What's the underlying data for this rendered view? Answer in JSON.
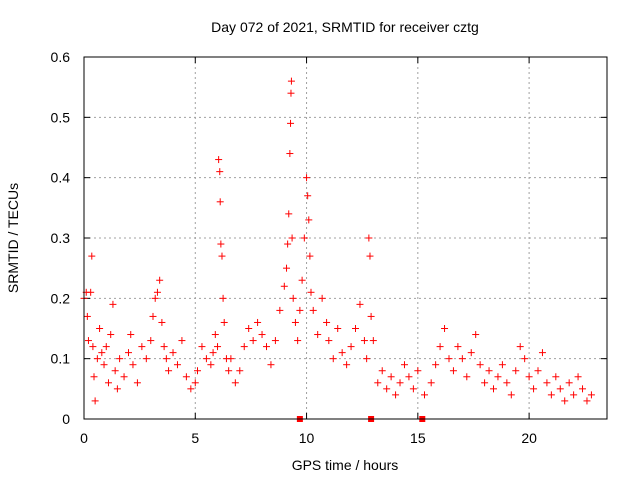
{
  "chart_data": {
    "type": "scatter",
    "title": "Day 072 of 2021, SRMTID for receiver cztg",
    "xlabel": "GPS time / hours",
    "ylabel": "SRMTID / TECUs",
    "xlim": [
      0,
      23.5
    ],
    "ylim": [
      0,
      0.6
    ],
    "x_ticks": [
      0,
      5,
      10,
      15,
      20
    ],
    "y_ticks": [
      0,
      0.1,
      0.2,
      0.3,
      0.4,
      0.5,
      0.6
    ],
    "grid": true,
    "marker": "+",
    "color": "#ff0000",
    "series": [
      {
        "name": "SRMTID",
        "points": [
          [
            0.0,
            0.2
          ],
          [
            0.1,
            0.21
          ],
          [
            0.15,
            0.17
          ],
          [
            0.2,
            0.13
          ],
          [
            0.3,
            0.21
          ],
          [
            0.35,
            0.27
          ],
          [
            0.4,
            0.12
          ],
          [
            0.45,
            0.07
          ],
          [
            0.5,
            0.03
          ],
          [
            0.6,
            0.1
          ],
          [
            0.7,
            0.15
          ],
          [
            0.8,
            0.11
          ],
          [
            0.9,
            0.09
          ],
          [
            1.0,
            0.12
          ],
          [
            1.1,
            0.06
          ],
          [
            1.2,
            0.14
          ],
          [
            1.3,
            0.19
          ],
          [
            1.4,
            0.08
          ],
          [
            1.5,
            0.05
          ],
          [
            1.6,
            0.1
          ],
          [
            1.8,
            0.07
          ],
          [
            2.0,
            0.11
          ],
          [
            2.1,
            0.14
          ],
          [
            2.2,
            0.09
          ],
          [
            2.4,
            0.06
          ],
          [
            2.6,
            0.12
          ],
          [
            2.8,
            0.1
          ],
          [
            3.0,
            0.13
          ],
          [
            3.1,
            0.17
          ],
          [
            3.2,
            0.2
          ],
          [
            3.3,
            0.21
          ],
          [
            3.4,
            0.23
          ],
          [
            3.5,
            0.16
          ],
          [
            3.6,
            0.12
          ],
          [
            3.7,
            0.1
          ],
          [
            3.8,
            0.08
          ],
          [
            4.0,
            0.11
          ],
          [
            4.2,
            0.09
          ],
          [
            4.4,
            0.13
          ],
          [
            4.6,
            0.07
          ],
          [
            4.8,
            0.05
          ],
          [
            5.0,
            0.06
          ],
          [
            5.1,
            0.08
          ],
          [
            5.3,
            0.12
          ],
          [
            5.5,
            0.1
          ],
          [
            5.7,
            0.09
          ],
          [
            5.8,
            0.11
          ],
          [
            5.9,
            0.14
          ],
          [
            6.0,
            0.12
          ],
          [
            6.05,
            0.43
          ],
          [
            6.1,
            0.41
          ],
          [
            6.12,
            0.36
          ],
          [
            6.15,
            0.29
          ],
          [
            6.2,
            0.27
          ],
          [
            6.25,
            0.2
          ],
          [
            6.3,
            0.16
          ],
          [
            6.4,
            0.1
          ],
          [
            6.5,
            0.08
          ],
          [
            6.6,
            0.1
          ],
          [
            6.8,
            0.06
          ],
          [
            7.0,
            0.08
          ],
          [
            7.2,
            0.12
          ],
          [
            7.4,
            0.15
          ],
          [
            7.6,
            0.13
          ],
          [
            7.8,
            0.16
          ],
          [
            8.0,
            0.14
          ],
          [
            8.2,
            0.12
          ],
          [
            8.4,
            0.09
          ],
          [
            8.6,
            0.13
          ],
          [
            8.8,
            0.18
          ],
          [
            9.0,
            0.22
          ],
          [
            9.1,
            0.25
          ],
          [
            9.15,
            0.29
          ],
          [
            9.2,
            0.34
          ],
          [
            9.25,
            0.44
          ],
          [
            9.28,
            0.49
          ],
          [
            9.3,
            0.54
          ],
          [
            9.32,
            0.56
          ],
          [
            9.35,
            0.3
          ],
          [
            9.4,
            0.2
          ],
          [
            9.5,
            0.16
          ],
          [
            9.6,
            0.13
          ],
          [
            9.7,
            0.18
          ],
          [
            9.8,
            0.23
          ],
          [
            9.9,
            0.3
          ],
          [
            10.0,
            0.4
          ],
          [
            10.05,
            0.37
          ],
          [
            10.1,
            0.33
          ],
          [
            10.15,
            0.27
          ],
          [
            10.2,
            0.21
          ],
          [
            10.3,
            0.18
          ],
          [
            10.5,
            0.14
          ],
          [
            10.7,
            0.2
          ],
          [
            10.9,
            0.16
          ],
          [
            11.0,
            0.13
          ],
          [
            11.2,
            0.1
          ],
          [
            11.4,
            0.15
          ],
          [
            11.6,
            0.11
          ],
          [
            11.8,
            0.09
          ],
          [
            12.0,
            0.12
          ],
          [
            12.2,
            0.15
          ],
          [
            12.4,
            0.19
          ],
          [
            12.6,
            0.13
          ],
          [
            12.7,
            0.1
          ],
          [
            12.8,
            0.3
          ],
          [
            12.85,
            0.27
          ],
          [
            12.9,
            0.17
          ],
          [
            13.0,
            0.13
          ],
          [
            13.2,
            0.06
          ],
          [
            13.4,
            0.08
          ],
          [
            13.6,
            0.05
          ],
          [
            13.8,
            0.07
          ],
          [
            14.0,
            0.04
          ],
          [
            14.2,
            0.06
          ],
          [
            14.4,
            0.09
          ],
          [
            14.6,
            0.07
          ],
          [
            14.8,
            0.05
          ],
          [
            15.0,
            0.08
          ],
          [
            15.3,
            0.04
          ],
          [
            15.6,
            0.06
          ],
          [
            15.8,
            0.09
          ],
          [
            16.0,
            0.12
          ],
          [
            16.2,
            0.15
          ],
          [
            16.4,
            0.1
          ],
          [
            16.6,
            0.08
          ],
          [
            16.8,
            0.12
          ],
          [
            17.0,
            0.1
          ],
          [
            17.2,
            0.07
          ],
          [
            17.4,
            0.11
          ],
          [
            17.6,
            0.14
          ],
          [
            17.8,
            0.09
          ],
          [
            18.0,
            0.06
          ],
          [
            18.2,
            0.08
          ],
          [
            18.4,
            0.05
          ],
          [
            18.6,
            0.07
          ],
          [
            18.8,
            0.09
          ],
          [
            19.0,
            0.06
          ],
          [
            19.2,
            0.04
          ],
          [
            19.4,
            0.08
          ],
          [
            19.6,
            0.12
          ],
          [
            19.8,
            0.1
          ],
          [
            20.0,
            0.07
          ],
          [
            20.2,
            0.05
          ],
          [
            20.4,
            0.08
          ],
          [
            20.6,
            0.11
          ],
          [
            20.8,
            0.06
          ],
          [
            21.0,
            0.04
          ],
          [
            21.2,
            0.07
          ],
          [
            21.4,
            0.05
          ],
          [
            21.6,
            0.03
          ],
          [
            21.8,
            0.06
          ],
          [
            22.0,
            0.04
          ],
          [
            22.2,
            0.07
          ],
          [
            22.4,
            0.05
          ],
          [
            22.6,
            0.03
          ],
          [
            22.8,
            0.04
          ]
        ]
      }
    ],
    "gap_markers_x": [
      9.7,
      12.9,
      15.2
    ]
  }
}
